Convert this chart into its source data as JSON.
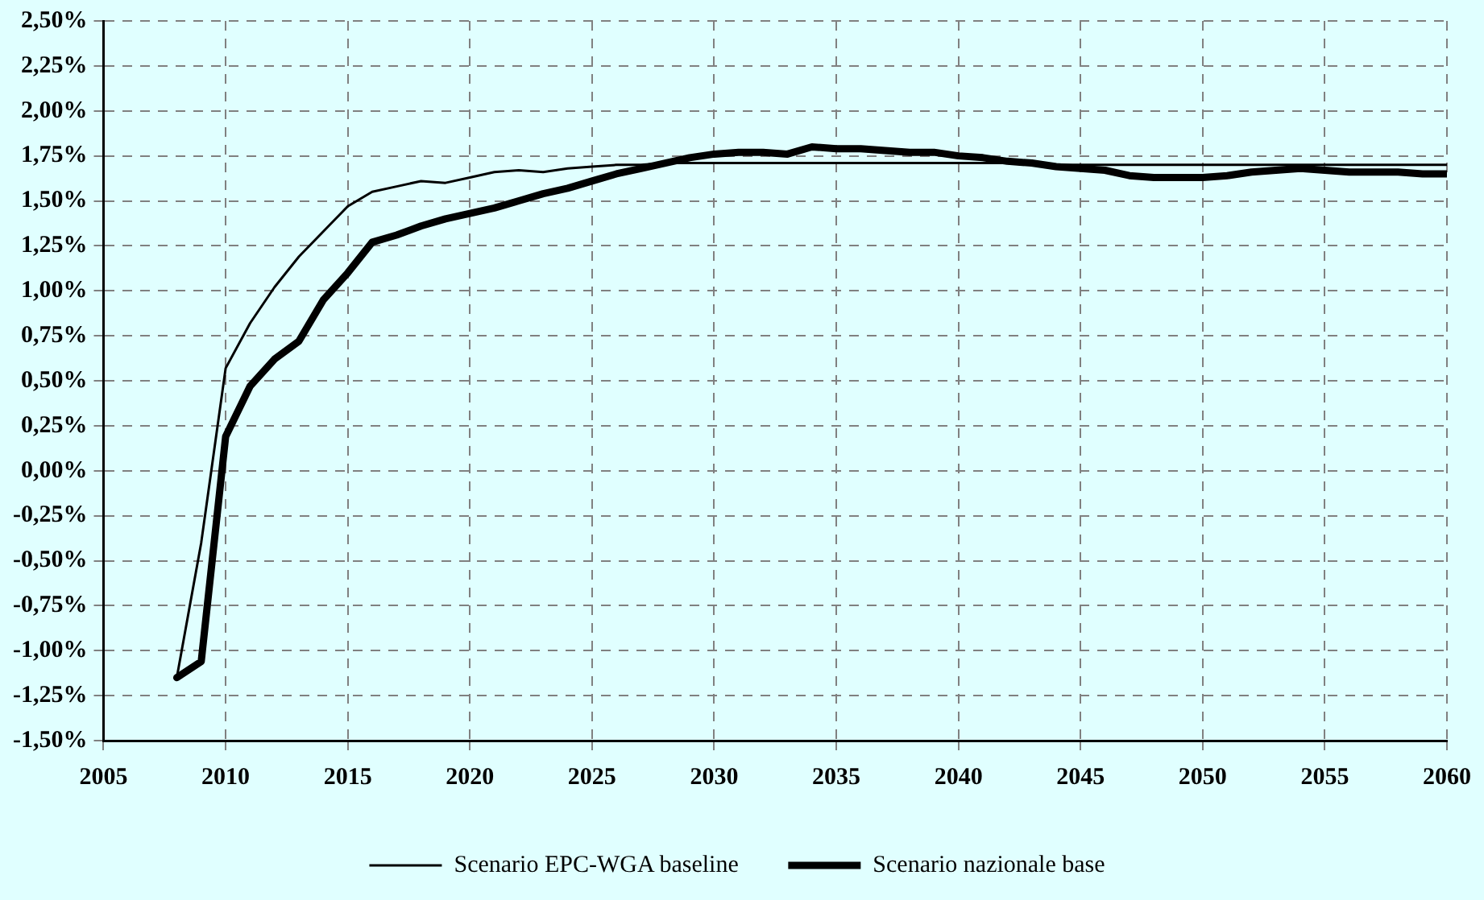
{
  "chart_data": {
    "type": "line",
    "x": [
      2008,
      2009,
      2010,
      2011,
      2012,
      2013,
      2014,
      2015,
      2016,
      2017,
      2018,
      2019,
      2020,
      2021,
      2022,
      2023,
      2024,
      2025,
      2026,
      2027,
      2028,
      2029,
      2030,
      2031,
      2032,
      2033,
      2034,
      2035,
      2036,
      2037,
      2038,
      2039,
      2040,
      2041,
      2042,
      2043,
      2044,
      2045,
      2046,
      2047,
      2048,
      2049,
      2050,
      2051,
      2052,
      2053,
      2054,
      2055,
      2056,
      2057,
      2058,
      2059,
      2060
    ],
    "series": [
      {
        "name": "Scenario EPC-WGA baseline",
        "color": "#000000",
        "line_style": "solid",
        "values": [
          -1.15,
          -0.4,
          0.57,
          0.82,
          1.02,
          1.19,
          1.33,
          1.47,
          1.55,
          1.58,
          1.61,
          1.6,
          1.63,
          1.66,
          1.67,
          1.66,
          1.68,
          1.69,
          1.7,
          1.7,
          1.71,
          1.71,
          1.71,
          1.71,
          1.71,
          1.71,
          1.71,
          1.71,
          1.71,
          1.71,
          1.71,
          1.71,
          1.71,
          1.71,
          1.71,
          1.7,
          1.7,
          1.7,
          1.7,
          1.7,
          1.7,
          1.7,
          1.7,
          1.7,
          1.7,
          1.7,
          1.7,
          1.7,
          1.7,
          1.7,
          1.7,
          1.7,
          1.7
        ]
      },
      {
        "name": "Scenario nazionale base",
        "color": "#000000",
        "line_style": "solid",
        "values": [
          -1.15,
          -1.06,
          0.19,
          0.47,
          0.62,
          0.72,
          0.95,
          1.1,
          1.27,
          1.31,
          1.36,
          1.4,
          1.43,
          1.46,
          1.5,
          1.54,
          1.57,
          1.61,
          1.65,
          1.68,
          1.71,
          1.74,
          1.76,
          1.77,
          1.77,
          1.76,
          1.8,
          1.79,
          1.79,
          1.78,
          1.77,
          1.77,
          1.75,
          1.74,
          1.72,
          1.71,
          1.69,
          1.68,
          1.67,
          1.64,
          1.63,
          1.63,
          1.63,
          1.64,
          1.66,
          1.67,
          1.68,
          1.67,
          1.66,
          1.66,
          1.66,
          1.65,
          1.65
        ]
      }
    ],
    "xlim": [
      2005,
      2060
    ],
    "xticks": [
      2005,
      2010,
      2015,
      2020,
      2025,
      2030,
      2035,
      2040,
      2045,
      2050,
      2055,
      2060
    ],
    "ylim": [
      -1.5,
      2.5
    ],
    "yticks": [
      {
        "value": -1.5,
        "label": "-1,50%"
      },
      {
        "value": -1.25,
        "label": "-1,25%"
      },
      {
        "value": -1,
        "label": "-1,00%"
      },
      {
        "value": -0.75,
        "label": "-0,75%"
      },
      {
        "value": -0.5,
        "label": "-0,50%"
      },
      {
        "value": -0.25,
        "label": "-0,25%"
      },
      {
        "value": 0,
        "label": "0,00%"
      },
      {
        "value": 0.25,
        "label": "0,25%"
      },
      {
        "value": 0.5,
        "label": "0,50%"
      },
      {
        "value": 0.75,
        "label": "0,75%"
      },
      {
        "value": 1,
        "label": "1,00%"
      },
      {
        "value": 1.25,
        "label": "1,25%"
      },
      {
        "value": 1.5,
        "label": "1,50%"
      },
      {
        "value": 1.75,
        "label": "1,75%"
      },
      {
        "value": 2,
        "label": "2,00%"
      },
      {
        "value": 2.25,
        "label": "2,25%"
      },
      {
        "value": 2.5,
        "label": "2,50%"
      }
    ],
    "grid": true,
    "legend": "bottom",
    "marker": "none"
  }
}
